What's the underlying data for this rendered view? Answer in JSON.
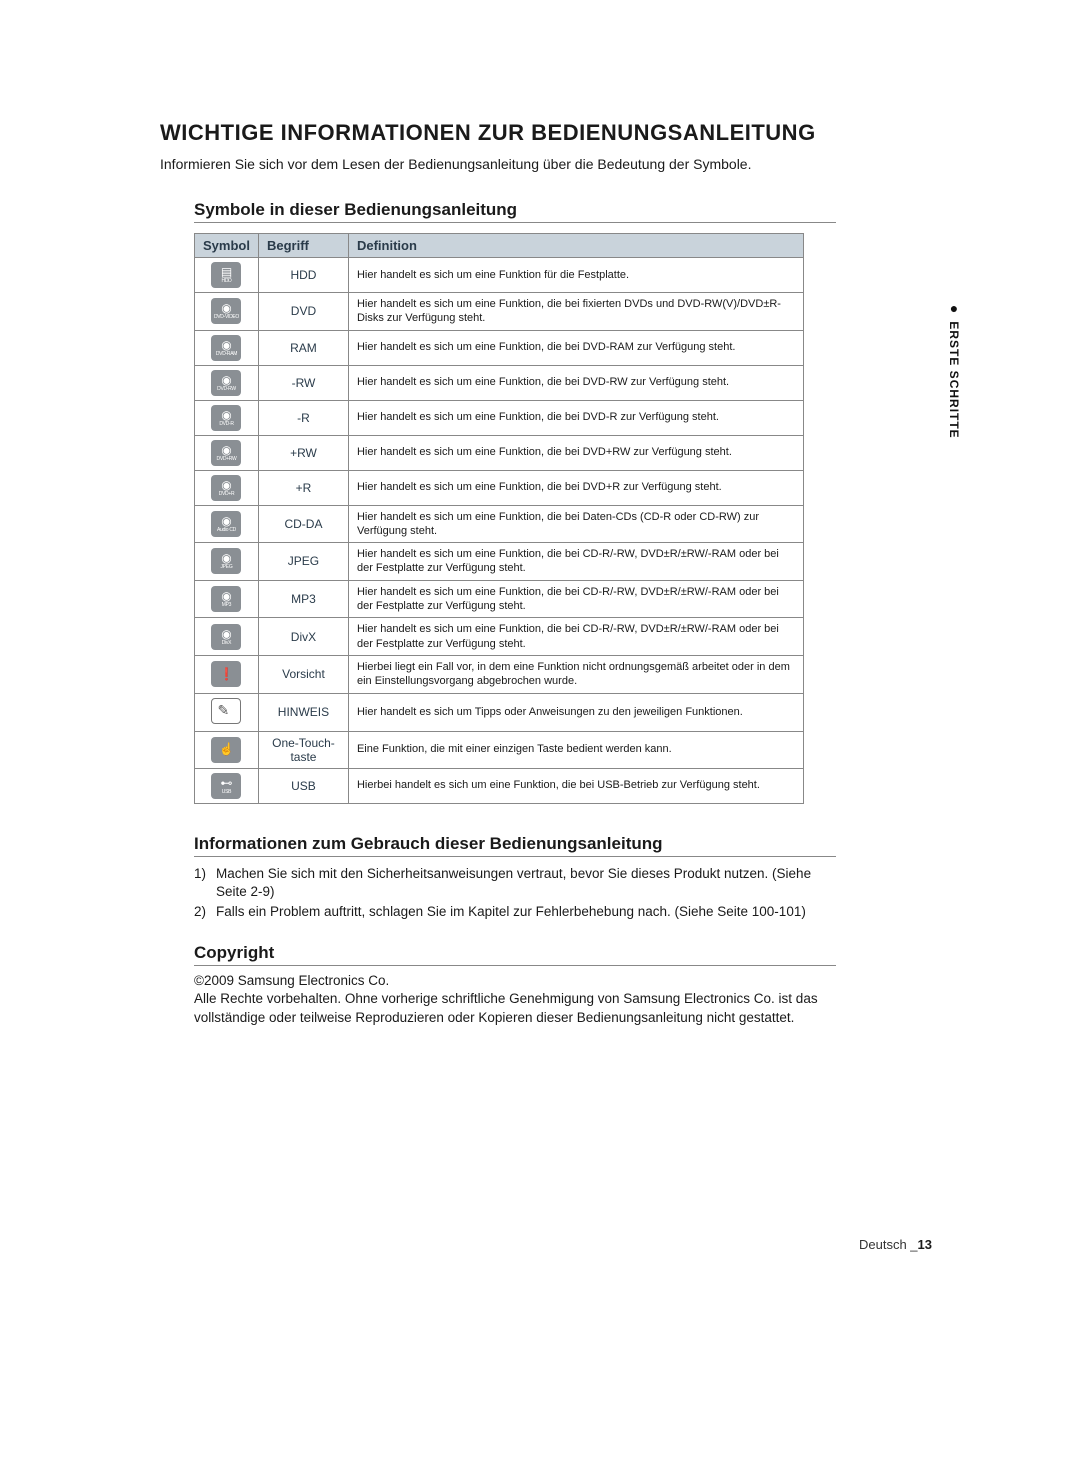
{
  "side_tab": {
    "bullet": "●",
    "text": "ERSTE SCHRITTE"
  },
  "headings": {
    "main": "WICHTIGE INFORMATIONEN ZUR BEDIENUNGSANLEITUNG",
    "intro": "Informieren Sie sich vor dem Lesen der Bedienungsanleitung über die Bedeutung der Symbole.",
    "symbols": "Symbole in dieser Bedienungsanleitung",
    "usage": "Informationen zum Gebrauch dieser Bedienungsanleitung",
    "copyright": "Copyright"
  },
  "table": {
    "headers": {
      "symbol": "Symbol",
      "term": "Begriff",
      "definition": "Definition"
    },
    "rows": [
      {
        "icon_glyph": "▤",
        "icon_label": "HDD",
        "term": "HDD",
        "def": "Hier handelt es sich um eine Funktion für die Festplatte."
      },
      {
        "icon_glyph": "◉",
        "icon_label": "DVD-VIDEO",
        "term": "DVD",
        "def": "Hier handelt es sich um eine Funktion, die bei fixierten DVDs und DVD-RW(V)/DVD±R-Disks zur Verfügung steht."
      },
      {
        "icon_glyph": "◉",
        "icon_label": "DVD-RAM",
        "term": "RAM",
        "def": "Hier handelt es sich um eine Funktion, die bei DVD-RAM zur Verfügung steht."
      },
      {
        "icon_glyph": "◉",
        "icon_label": "DVD-RW",
        "term": "-RW",
        "def": "Hier handelt es sich um eine Funktion, die bei DVD-RW zur Verfügung steht."
      },
      {
        "icon_glyph": "◉",
        "icon_label": "DVD-R",
        "term": "-R",
        "def": "Hier handelt es sich um eine Funktion, die bei DVD-R zur Verfügung steht."
      },
      {
        "icon_glyph": "◉",
        "icon_label": "DVD+RW",
        "term": "+RW",
        "def": "Hier handelt es sich um eine Funktion, die bei DVD+RW zur Verfügung steht."
      },
      {
        "icon_glyph": "◉",
        "icon_label": "DVD+R",
        "term": "+R",
        "def": "Hier handelt es sich um eine Funktion, die bei DVD+R zur Verfügung steht."
      },
      {
        "icon_glyph": "◉",
        "icon_label": "Audio CD",
        "term": "CD-DA",
        "def": "Hier handelt es sich um eine Funktion, die bei Daten-CDs (CD-R oder CD-RW) zur Verfügung steht."
      },
      {
        "icon_glyph": "◉",
        "icon_label": "JPEG",
        "term": "JPEG",
        "def": "Hier handelt es sich um eine Funktion, die bei CD-R/-RW, DVD±R/±RW/-RAM oder bei der Festplatte zur Verfügung steht."
      },
      {
        "icon_glyph": "◉",
        "icon_label": "MP3",
        "term": "MP3",
        "def": "Hier handelt es sich um eine Funktion, die bei CD-R/-RW, DVD±R/±RW/-RAM oder bei der Festplatte zur Verfügung steht."
      },
      {
        "icon_glyph": "◉",
        "icon_label": "DivX",
        "term": "DivX",
        "def": "Hier handelt es sich um eine Funktion, die bei CD-R/-RW, DVD±R/±RW/-RAM oder bei der Festplatte zur Verfügung steht."
      },
      {
        "icon_glyph": "❗",
        "icon_label": "",
        "term": "Vorsicht",
        "def": "Hierbei liegt ein Fall vor, in dem eine Funktion nicht ordnungsgemäß arbeitet oder in dem ein Einstellungsvorgang abgebrochen wurde."
      },
      {
        "icon_glyph": "note",
        "icon_label": "",
        "term": "HINWEIS",
        "def": "Hier handelt es sich um Tipps oder Anweisungen zu den jeweiligen Funktionen."
      },
      {
        "icon_glyph": "☝",
        "icon_label": "",
        "term": "One-Touch-taste",
        "def": "Eine Funktion, die mit einer einzigen Taste bedient werden kann."
      },
      {
        "icon_glyph": "⊷",
        "icon_label": "USB",
        "term": "USB",
        "def": "Hierbei handelt es sich um eine Funktion, die bei USB-Betrieb zur Verfügung steht."
      }
    ]
  },
  "usage_list": [
    {
      "n": "1)",
      "text": "Machen Sie sich mit den Sicherheitsanweisungen vertraut, bevor Sie dieses Produkt nutzen. (Siehe Seite 2-9)"
    },
    {
      "n": "2)",
      "text": "Falls ein Problem auftritt, schlagen Sie im Kapitel zur Fehlerbehebung nach. (Siehe Seite 100-101)"
    }
  ],
  "copyright": {
    "line1": "©2009 Samsung Electronics Co.",
    "line2": "Alle Rechte vorbehalten. Ohne vorherige schriftliche Genehmigung von Samsung Electronics Co. ist das vollständige oder teilweise Reproduzieren oder Kopieren dieser Bedienungsanleitung nicht gestattet."
  },
  "footer": {
    "lang": "Deutsch _",
    "page": "13"
  }
}
